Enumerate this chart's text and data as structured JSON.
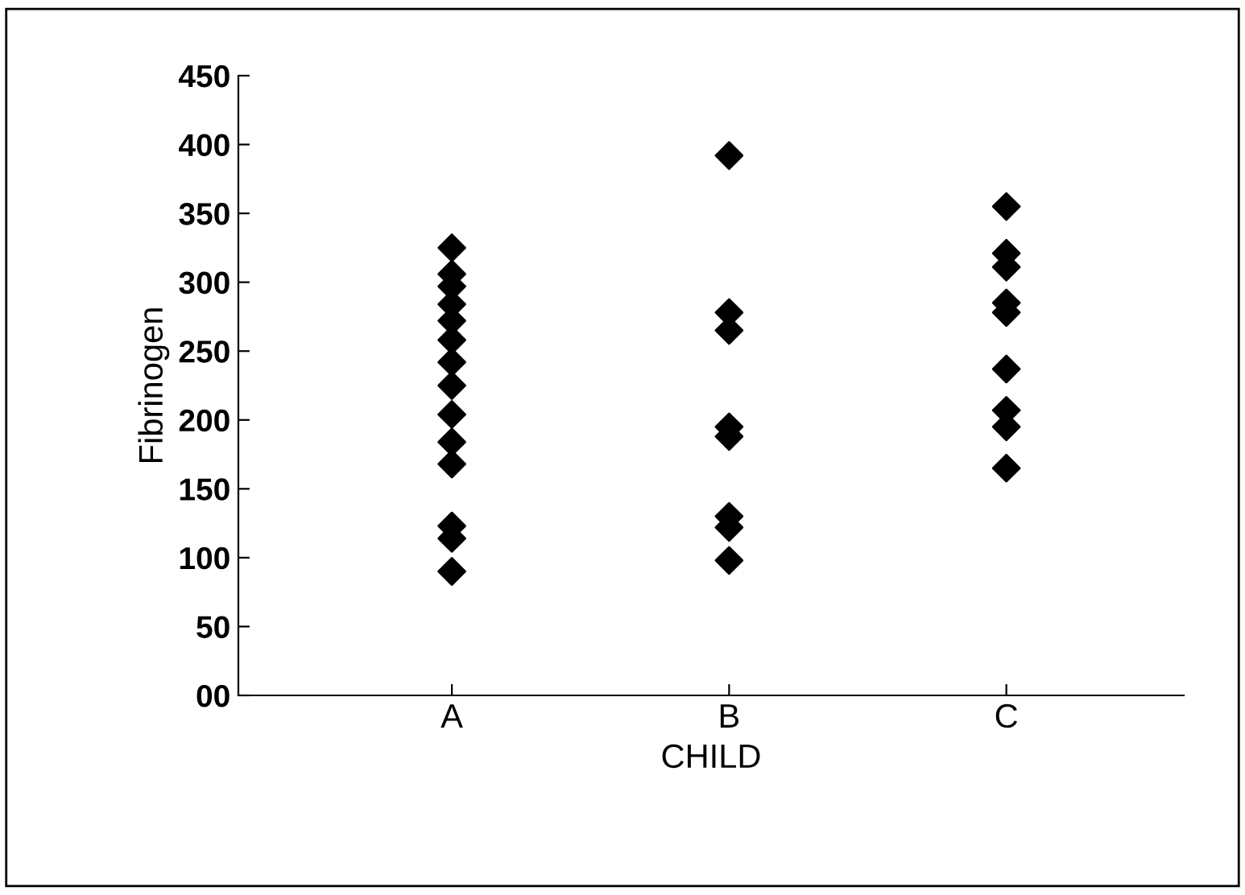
{
  "chart_data": {
    "type": "scatter",
    "xlabel": "CHILD",
    "ylabel": "Fibrinogen",
    "categories": [
      "A",
      "B",
      "C"
    ],
    "series": [
      {
        "color": "#000000",
        "x": [
          "A",
          "A",
          "A",
          "A",
          "A",
          "A",
          "A",
          "A",
          "A",
          "A",
          "A",
          "A",
          "A",
          "A"
        ],
        "values": [
          325,
          306,
          297,
          284,
          272,
          258,
          242,
          225,
          204,
          184,
          168,
          123,
          114,
          90
        ]
      },
      {
        "color": "#000000",
        "x": [
          "B",
          "B",
          "B",
          "B",
          "B",
          "B",
          "B",
          "B"
        ],
        "values": [
          392,
          278,
          265,
          195,
          188,
          130,
          122,
          98
        ]
      },
      {
        "color": "#000000",
        "x": [
          "C",
          "C",
          "C",
          "C",
          "C",
          "C",
          "C",
          "C",
          "C"
        ],
        "values": [
          355,
          321,
          311,
          285,
          278,
          237,
          207,
          195,
          165
        ]
      }
    ],
    "ylim": [
      0,
      450
    ],
    "yticks": [
      {
        "value": 0,
        "label": "00"
      },
      50,
      100,
      150,
      200,
      250,
      300,
      350,
      400,
      450
    ],
    "marker": "diamond",
    "grid": false,
    "legend": false
  }
}
